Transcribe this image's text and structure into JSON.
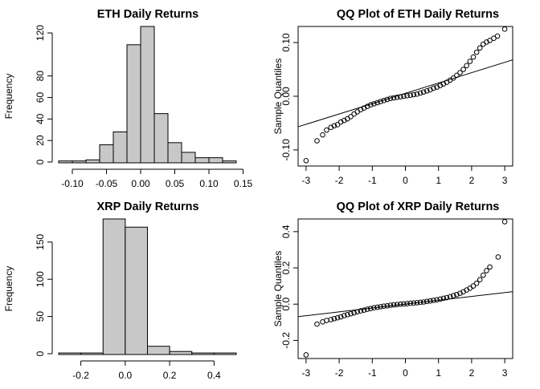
{
  "chart_data": [
    {
      "type": "histogram",
      "title": "ETH Daily Returns",
      "xlabel": "",
      "ylabel": "Frequency",
      "bin_edges": [
        -0.12,
        -0.1,
        -0.08,
        -0.06,
        -0.04,
        -0.02,
        0.0,
        0.02,
        0.04,
        0.06,
        0.08,
        0.1,
        0.12,
        0.14
      ],
      "counts": [
        1,
        1,
        2,
        16,
        28,
        109,
        126,
        45,
        18,
        9,
        4,
        4,
        1
      ],
      "xticks": [
        -0.1,
        -0.05,
        0.0,
        0.05,
        0.1,
        0.15
      ],
      "xtick_labels": [
        "-0.10",
        "-0.05",
        "0.00",
        "0.05",
        "0.10",
        "0.15"
      ],
      "yticks": [
        0,
        20,
        40,
        60,
        80,
        120
      ],
      "ytick_labels": [
        "0",
        "20",
        "40",
        "60",
        "80",
        "120"
      ],
      "xlim": [
        -0.12,
        0.14
      ],
      "ylim": [
        0,
        126
      ],
      "bar_color": "#c8c8c8"
    },
    {
      "type": "scatter",
      "title": "QQ Plot of ETH Daily Returns",
      "xlabel": "",
      "ylabel": "Sample Quantiles",
      "points": [
        [
          -3.0,
          -0.12
        ],
        [
          -2.67,
          -0.083
        ],
        [
          -2.5,
          -0.072
        ],
        [
          -2.38,
          -0.063
        ],
        [
          -2.25,
          -0.058
        ],
        [
          -2.15,
          -0.055
        ],
        [
          -2.05,
          -0.053
        ],
        [
          -1.95,
          -0.048
        ],
        [
          -1.85,
          -0.045
        ],
        [
          -1.75,
          -0.042
        ],
        [
          -1.65,
          -0.038
        ],
        [
          -1.55,
          -0.033
        ],
        [
          -1.45,
          -0.029
        ],
        [
          -1.35,
          -0.025
        ],
        [
          -1.25,
          -0.022
        ],
        [
          -1.15,
          -0.019
        ],
        [
          -1.05,
          -0.016
        ],
        [
          -0.95,
          -0.014
        ],
        [
          -0.85,
          -0.012
        ],
        [
          -0.75,
          -0.01
        ],
        [
          -0.65,
          -0.008
        ],
        [
          -0.55,
          -0.006
        ],
        [
          -0.45,
          -0.004
        ],
        [
          -0.35,
          -0.003
        ],
        [
          -0.25,
          -0.002
        ],
        [
          -0.15,
          -0.001
        ],
        [
          -0.05,
          0.0
        ],
        [
          0.05,
          0.001
        ],
        [
          0.15,
          0.002
        ],
        [
          0.25,
          0.003
        ],
        [
          0.35,
          0.004
        ],
        [
          0.45,
          0.006
        ],
        [
          0.55,
          0.008
        ],
        [
          0.65,
          0.01
        ],
        [
          0.75,
          0.012
        ],
        [
          0.85,
          0.015
        ],
        [
          0.95,
          0.017
        ],
        [
          1.05,
          0.02
        ],
        [
          1.15,
          0.023
        ],
        [
          1.25,
          0.026
        ],
        [
          1.35,
          0.03
        ],
        [
          1.45,
          0.034
        ],
        [
          1.55,
          0.039
        ],
        [
          1.65,
          0.044
        ],
        [
          1.75,
          0.05
        ],
        [
          1.85,
          0.057
        ],
        [
          1.95,
          0.065
        ],
        [
          2.05,
          0.073
        ],
        [
          2.15,
          0.082
        ],
        [
          2.25,
          0.09
        ],
        [
          2.35,
          0.097
        ],
        [
          2.45,
          0.101
        ],
        [
          2.55,
          0.104
        ],
        [
          2.67,
          0.108
        ],
        [
          2.78,
          0.112
        ],
        [
          3.0,
          0.125
        ]
      ],
      "reference_line": [
        [
          -3.3,
          -0.058
        ],
        [
          3.3,
          0.069
        ]
      ],
      "xticks": [
        -3,
        -2,
        -1,
        0,
        1,
        2,
        3
      ],
      "xtick_labels": [
        "-3",
        "-2",
        "-1",
        "0",
        "1",
        "2",
        "3"
      ],
      "yticks": [
        -0.1,
        0.0,
        0.1
      ],
      "ytick_labels": [
        "-0.10",
        "0.00",
        "0.10"
      ],
      "xlim": [
        -3.24,
        3.24
      ],
      "ylim": [
        -0.13,
        0.13
      ]
    },
    {
      "type": "histogram",
      "title": "XRP Daily Returns",
      "xlabel": "",
      "ylabel": "Frequency",
      "bin_edges": [
        -0.3,
        -0.2,
        -0.1,
        0.0,
        0.1,
        0.2,
        0.3,
        0.4,
        0.5
      ],
      "counts": [
        1,
        1,
        181,
        170,
        10,
        3,
        1,
        1
      ],
      "xticks": [
        -0.2,
        0.0,
        0.2,
        0.4
      ],
      "xtick_labels": [
        "-0.2",
        "0.0",
        "0.2",
        "0.4"
      ],
      "yticks": [
        0,
        50,
        100,
        150
      ],
      "ytick_labels": [
        "0",
        "50",
        "100",
        "150"
      ],
      "xlim": [
        -0.3,
        0.5
      ],
      "ylim": [
        0,
        181
      ],
      "bar_color": "#c8c8c8"
    },
    {
      "type": "scatter",
      "title": "QQ Plot of XRP Daily Returns",
      "xlabel": "",
      "ylabel": "Sample Quantiles",
      "points": [
        [
          -3.0,
          -0.28
        ],
        [
          -2.67,
          -0.11
        ],
        [
          -2.5,
          -0.098
        ],
        [
          -2.38,
          -0.09
        ],
        [
          -2.25,
          -0.085
        ],
        [
          -2.15,
          -0.08
        ],
        [
          -2.05,
          -0.075
        ],
        [
          -1.95,
          -0.07
        ],
        [
          -1.85,
          -0.063
        ],
        [
          -1.75,
          -0.058
        ],
        [
          -1.65,
          -0.053
        ],
        [
          -1.55,
          -0.048
        ],
        [
          -1.45,
          -0.042
        ],
        [
          -1.35,
          -0.037
        ],
        [
          -1.25,
          -0.033
        ],
        [
          -1.15,
          -0.028
        ],
        [
          -1.05,
          -0.024
        ],
        [
          -0.95,
          -0.02
        ],
        [
          -0.85,
          -0.017
        ],
        [
          -0.75,
          -0.014
        ],
        [
          -0.65,
          -0.011
        ],
        [
          -0.55,
          -0.009
        ],
        [
          -0.45,
          -0.006
        ],
        [
          -0.35,
          -0.004
        ],
        [
          -0.25,
          -0.002
        ],
        [
          -0.15,
          0.0
        ],
        [
          -0.05,
          0.001
        ],
        [
          0.05,
          0.003
        ],
        [
          0.15,
          0.005
        ],
        [
          0.25,
          0.006
        ],
        [
          0.35,
          0.008
        ],
        [
          0.45,
          0.01
        ],
        [
          0.55,
          0.012
        ],
        [
          0.65,
          0.015
        ],
        [
          0.75,
          0.018
        ],
        [
          0.85,
          0.021
        ],
        [
          0.95,
          0.024
        ],
        [
          1.05,
          0.028
        ],
        [
          1.15,
          0.032
        ],
        [
          1.25,
          0.036
        ],
        [
          1.35,
          0.041
        ],
        [
          1.45,
          0.047
        ],
        [
          1.55,
          0.053
        ],
        [
          1.65,
          0.06
        ],
        [
          1.75,
          0.068
        ],
        [
          1.85,
          0.078
        ],
        [
          1.95,
          0.088
        ],
        [
          2.05,
          0.1
        ],
        [
          2.15,
          0.115
        ],
        [
          2.25,
          0.135
        ],
        [
          2.35,
          0.16
        ],
        [
          2.45,
          0.185
        ],
        [
          2.55,
          0.205
        ],
        [
          2.8,
          0.26
        ],
        [
          3.0,
          0.455
        ]
      ],
      "reference_line": [
        [
          -3.3,
          -0.07
        ],
        [
          3.3,
          0.07
        ]
      ],
      "xticks": [
        -3,
        -2,
        -1,
        0,
        1,
        2,
        3
      ],
      "xtick_labels": [
        "-3",
        "-2",
        "-1",
        "0",
        "1",
        "2",
        "3"
      ],
      "yticks": [
        -0.2,
        0.0,
        0.2,
        0.4
      ],
      "ytick_labels": [
        "-0.2",
        "0.0",
        "0.2",
        "0.4"
      ],
      "xlim": [
        -3.24,
        3.24
      ],
      "ylim": [
        -0.3,
        0.47
      ]
    }
  ]
}
